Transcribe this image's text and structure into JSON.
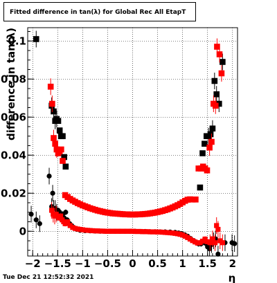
{
  "chart_data": {
    "type": "scatter",
    "title": "Fitted difference in tan(λ) for Global Rec All EtapT",
    "xlabel": "η",
    "ylabel": "difference in tan(λ)",
    "xlim": [
      -2.1,
      2.1
    ],
    "ylim": [
      -0.013,
      0.107
    ],
    "grid": true,
    "xticks": [
      -2,
      -1.5,
      -1,
      -0.5,
      0,
      0.5,
      1,
      1.5,
      2
    ],
    "xtick_labels": [
      "−2",
      "−1.5",
      "−1",
      "−0.5",
      "0",
      "0.5",
      "1",
      "1.5",
      "2"
    ],
    "yticks": [
      0,
      0.02,
      0.04,
      0.06,
      0.08,
      0.1
    ],
    "ytick_labels": [
      "0",
      "0.02",
      "0.04",
      "0.06",
      "0.08",
      "0.1"
    ],
    "series": [
      {
        "marker": "circle",
        "color": "#000000",
        "points": [
          [
            -2.03,
            0.009
          ],
          [
            -1.93,
            0.006
          ],
          [
            -1.86,
            0.004
          ],
          [
            -1.67,
            0.029
          ],
          [
            -1.62,
            0.013
          ],
          [
            -1.6,
            0.02
          ],
          [
            -1.58,
            0.012
          ],
          [
            -1.55,
            0.012
          ],
          [
            -1.52,
            0.01
          ],
          [
            -1.49,
            0.011
          ],
          [
            -1.46,
            0.01
          ],
          [
            -1.43,
            0.008
          ],
          [
            -1.4,
            0.009
          ],
          [
            -1.37,
            0.007
          ],
          [
            -1.34,
            0.01
          ],
          [
            -1.31,
            0.006
          ],
          [
            -1.26,
            0.004
          ],
          [
            -1.22,
            0.003
          ],
          [
            -1.18,
            0.002
          ],
          [
            -1.12,
            0.001
          ],
          [
            -1.05,
            0.0005
          ],
          [
            -0.95,
            0.0003
          ],
          [
            -0.85,
            0.0002
          ],
          [
            -0.75,
            0.0001
          ],
          [
            -0.65,
            0.0
          ],
          [
            -0.55,
            0.0
          ],
          [
            -0.45,
            0.0
          ],
          [
            -0.35,
            0.0
          ],
          [
            -0.25,
            0.0
          ],
          [
            -0.15,
            0.0
          ],
          [
            -0.05,
            0.0
          ],
          [
            0.05,
            0.0
          ],
          [
            0.15,
            -0.0001
          ],
          [
            0.25,
            -0.0001
          ],
          [
            0.35,
            -0.0002
          ],
          [
            0.45,
            -0.0002
          ],
          [
            0.55,
            -0.0003
          ],
          [
            0.65,
            -0.0003
          ],
          [
            0.75,
            -0.0004
          ],
          [
            0.85,
            -0.0006
          ],
          [
            0.92,
            -0.0009
          ],
          [
            0.98,
            -0.0012
          ],
          [
            1.04,
            -0.0018
          ],
          [
            1.1,
            -0.0026
          ],
          [
            1.16,
            -0.0038
          ],
          [
            1.22,
            -0.0049
          ],
          [
            1.27,
            -0.0058
          ],
          [
            1.32,
            -0.0066
          ],
          [
            1.37,
            -0.0066
          ],
          [
            1.42,
            -0.0055
          ],
          [
            1.46,
            -0.0063
          ],
          [
            1.5,
            -0.0082
          ],
          [
            1.54,
            -0.0092
          ],
          [
            1.58,
            -0.007
          ],
          [
            1.62,
            -0.005
          ],
          [
            1.66,
            -0.004
          ],
          [
            1.71,
            -0.012
          ],
          [
            1.85,
            -0.006
          ],
          [
            1.99,
            -0.006
          ],
          [
            2.04,
            -0.0065
          ]
        ]
      },
      {
        "marker": "square",
        "color": "#000000",
        "points": [
          [
            -1.93,
            0.101
          ],
          [
            -1.62,
            0.066
          ],
          [
            -1.58,
            0.063
          ],
          [
            -1.55,
            0.058
          ],
          [
            -1.52,
            0.059
          ],
          [
            -1.49,
            0.058
          ],
          [
            -1.46,
            0.053
          ],
          [
            -1.43,
            0.05
          ],
          [
            -1.4,
            0.05
          ],
          [
            -1.37,
            0.039
          ],
          [
            -1.34,
            0.034
          ],
          [
            1.35,
            0.023
          ],
          [
            1.4,
            0.041
          ],
          [
            1.44,
            0.046
          ],
          [
            1.48,
            0.05
          ],
          [
            1.52,
            0.05
          ],
          [
            1.56,
            0.051
          ],
          [
            1.6,
            0.054
          ],
          [
            1.64,
            0.079
          ],
          [
            1.68,
            0.072
          ],
          [
            1.73,
            0.067
          ],
          [
            1.8,
            0.089
          ]
        ]
      },
      {
        "marker": "square",
        "color": "#ff0000",
        "points": [
          [
            -1.64,
            0.076
          ],
          [
            -1.61,
            0.067
          ],
          [
            -1.58,
            0.049
          ],
          [
            -1.55,
            0.046
          ],
          [
            -1.52,
            0.043
          ],
          [
            -1.49,
            0.041
          ],
          [
            -1.46,
            0.042
          ],
          [
            -1.43,
            0.043
          ],
          [
            -1.4,
            0.037
          ],
          [
            -1.35,
            0.019
          ],
          [
            -1.3,
            0.018
          ],
          [
            -1.25,
            0.017
          ],
          [
            -1.2,
            0.0162
          ],
          [
            -1.15,
            0.0155
          ],
          [
            -1.1,
            0.0148
          ],
          [
            -1.05,
            0.0142
          ],
          [
            -1.0,
            0.0136
          ],
          [
            -0.95,
            0.0131
          ],
          [
            -0.9,
            0.0126
          ],
          [
            -0.85,
            0.0121
          ],
          [
            -0.8,
            0.0117
          ],
          [
            -0.75,
            0.0113
          ],
          [
            -0.7,
            0.0109
          ],
          [
            -0.65,
            0.0106
          ],
          [
            -0.6,
            0.0103
          ],
          [
            -0.55,
            0.01
          ],
          [
            -0.5,
            0.0098
          ],
          [
            -0.45,
            0.0096
          ],
          [
            -0.4,
            0.0094
          ],
          [
            -0.35,
            0.0093
          ],
          [
            -0.3,
            0.0092
          ],
          [
            -0.25,
            0.0091
          ],
          [
            -0.2,
            0.009
          ],
          [
            -0.15,
            0.0089
          ],
          [
            -0.1,
            0.0089
          ],
          [
            -0.05,
            0.0088
          ],
          [
            0.0,
            0.0088
          ],
          [
            0.05,
            0.0088
          ],
          [
            0.1,
            0.0089
          ],
          [
            0.15,
            0.0089
          ],
          [
            0.2,
            0.009
          ],
          [
            0.25,
            0.0091
          ],
          [
            0.3,
            0.0092
          ],
          [
            0.35,
            0.0094
          ],
          [
            0.4,
            0.0096
          ],
          [
            0.45,
            0.0098
          ],
          [
            0.5,
            0.0101
          ],
          [
            0.55,
            0.0104
          ],
          [
            0.6,
            0.0107
          ],
          [
            0.65,
            0.0111
          ],
          [
            0.7,
            0.0115
          ],
          [
            0.75,
            0.012
          ],
          [
            0.8,
            0.0125
          ],
          [
            0.85,
            0.0131
          ],
          [
            0.9,
            0.0137
          ],
          [
            0.95,
            0.0144
          ],
          [
            1.0,
            0.0152
          ],
          [
            1.05,
            0.016
          ],
          [
            1.1,
            0.0166
          ],
          [
            1.15,
            0.0168
          ],
          [
            1.2,
            0.0167
          ],
          [
            1.26,
            0.0167
          ],
          [
            1.32,
            0.033
          ],
          [
            1.37,
            0.033
          ],
          [
            1.41,
            0.034
          ],
          [
            1.45,
            0.033
          ],
          [
            1.49,
            0.032
          ],
          [
            1.54,
            0.044
          ],
          [
            1.58,
            0.047
          ],
          [
            1.62,
            0.067
          ],
          [
            1.66,
            0.066
          ],
          [
            1.69,
            0.097
          ],
          [
            1.74,
            0.093
          ],
          [
            1.78,
            0.083
          ]
        ]
      },
      {
        "marker": "square-small",
        "color": "#ff0000",
        "points": [
          [
            -1.62,
            0.011
          ],
          [
            -1.59,
            0.009
          ],
          [
            -1.56,
            0.008
          ],
          [
            -1.53,
            0.009
          ],
          [
            -1.5,
            0.008
          ],
          [
            -1.47,
            0.007
          ],
          [
            -1.44,
            0.008
          ],
          [
            -1.41,
            0.006
          ],
          [
            -1.38,
            0.005
          ],
          [
            -1.35,
            0.004
          ],
          [
            -1.3,
            0.005
          ],
          [
            -1.25,
            0.003
          ],
          [
            -1.2,
            0.002
          ],
          [
            -1.15,
            0.0015
          ],
          [
            -1.1,
            0.0012
          ],
          [
            -1.05,
            0.001
          ],
          [
            -1.0,
            0.0008
          ],
          [
            -0.95,
            0.0006
          ],
          [
            -0.9,
            0.0005
          ],
          [
            -0.85,
            0.0004
          ],
          [
            -0.8,
            0.0003
          ],
          [
            -0.75,
            0.0002
          ],
          [
            -0.7,
            0.0002
          ],
          [
            -0.65,
            0.0001
          ],
          [
            -0.6,
            0.0001
          ],
          [
            -0.55,
            0.0
          ],
          [
            -0.5,
            0.0
          ],
          [
            -0.45,
            0.0
          ],
          [
            -0.4,
            0.0
          ],
          [
            -0.35,
            0.0
          ],
          [
            -0.3,
            0.0
          ],
          [
            -0.25,
            0.0
          ],
          [
            -0.2,
            0.0
          ],
          [
            -0.15,
            0.0
          ],
          [
            -0.1,
            0.0
          ],
          [
            -0.05,
            0.0
          ],
          [
            0.0,
            0.0
          ],
          [
            0.05,
            -0.0001
          ],
          [
            0.1,
            -0.0001
          ],
          [
            0.15,
            -0.0001
          ],
          [
            0.2,
            -0.0002
          ],
          [
            0.25,
            -0.0002
          ],
          [
            0.3,
            -0.0002
          ],
          [
            0.35,
            -0.0003
          ],
          [
            0.4,
            -0.0003
          ],
          [
            0.45,
            -0.0003
          ],
          [
            0.5,
            -0.0004
          ],
          [
            0.55,
            -0.0004
          ],
          [
            0.6,
            -0.0005
          ],
          [
            0.65,
            -0.0006
          ],
          [
            0.7,
            -0.0007
          ],
          [
            0.75,
            -0.0008
          ],
          [
            0.8,
            -0.0009
          ],
          [
            0.85,
            -0.0011
          ],
          [
            0.9,
            -0.0013
          ],
          [
            0.95,
            -0.0016
          ],
          [
            1.0,
            -0.002
          ],
          [
            1.05,
            -0.0026
          ],
          [
            1.1,
            -0.0033
          ],
          [
            1.15,
            -0.0041
          ],
          [
            1.2,
            -0.0049
          ],
          [
            1.25,
            -0.0056
          ],
          [
            1.3,
            -0.0062
          ],
          [
            1.35,
            -0.006
          ],
          [
            1.4,
            -0.0052
          ],
          [
            1.45,
            -0.0041
          ],
          [
            1.5,
            -0.0055
          ],
          [
            1.55,
            -0.006
          ],
          [
            1.6,
            -0.004
          ],
          [
            1.65,
            -0.006
          ],
          [
            1.68,
            0.003
          ],
          [
            1.71,
            0.001
          ],
          [
            1.75,
            -0.005
          ],
          [
            1.8,
            -0.006
          ]
        ]
      }
    ]
  },
  "footer": {
    "timestamp": "Tue Dec 21 12:52:32 2021"
  }
}
